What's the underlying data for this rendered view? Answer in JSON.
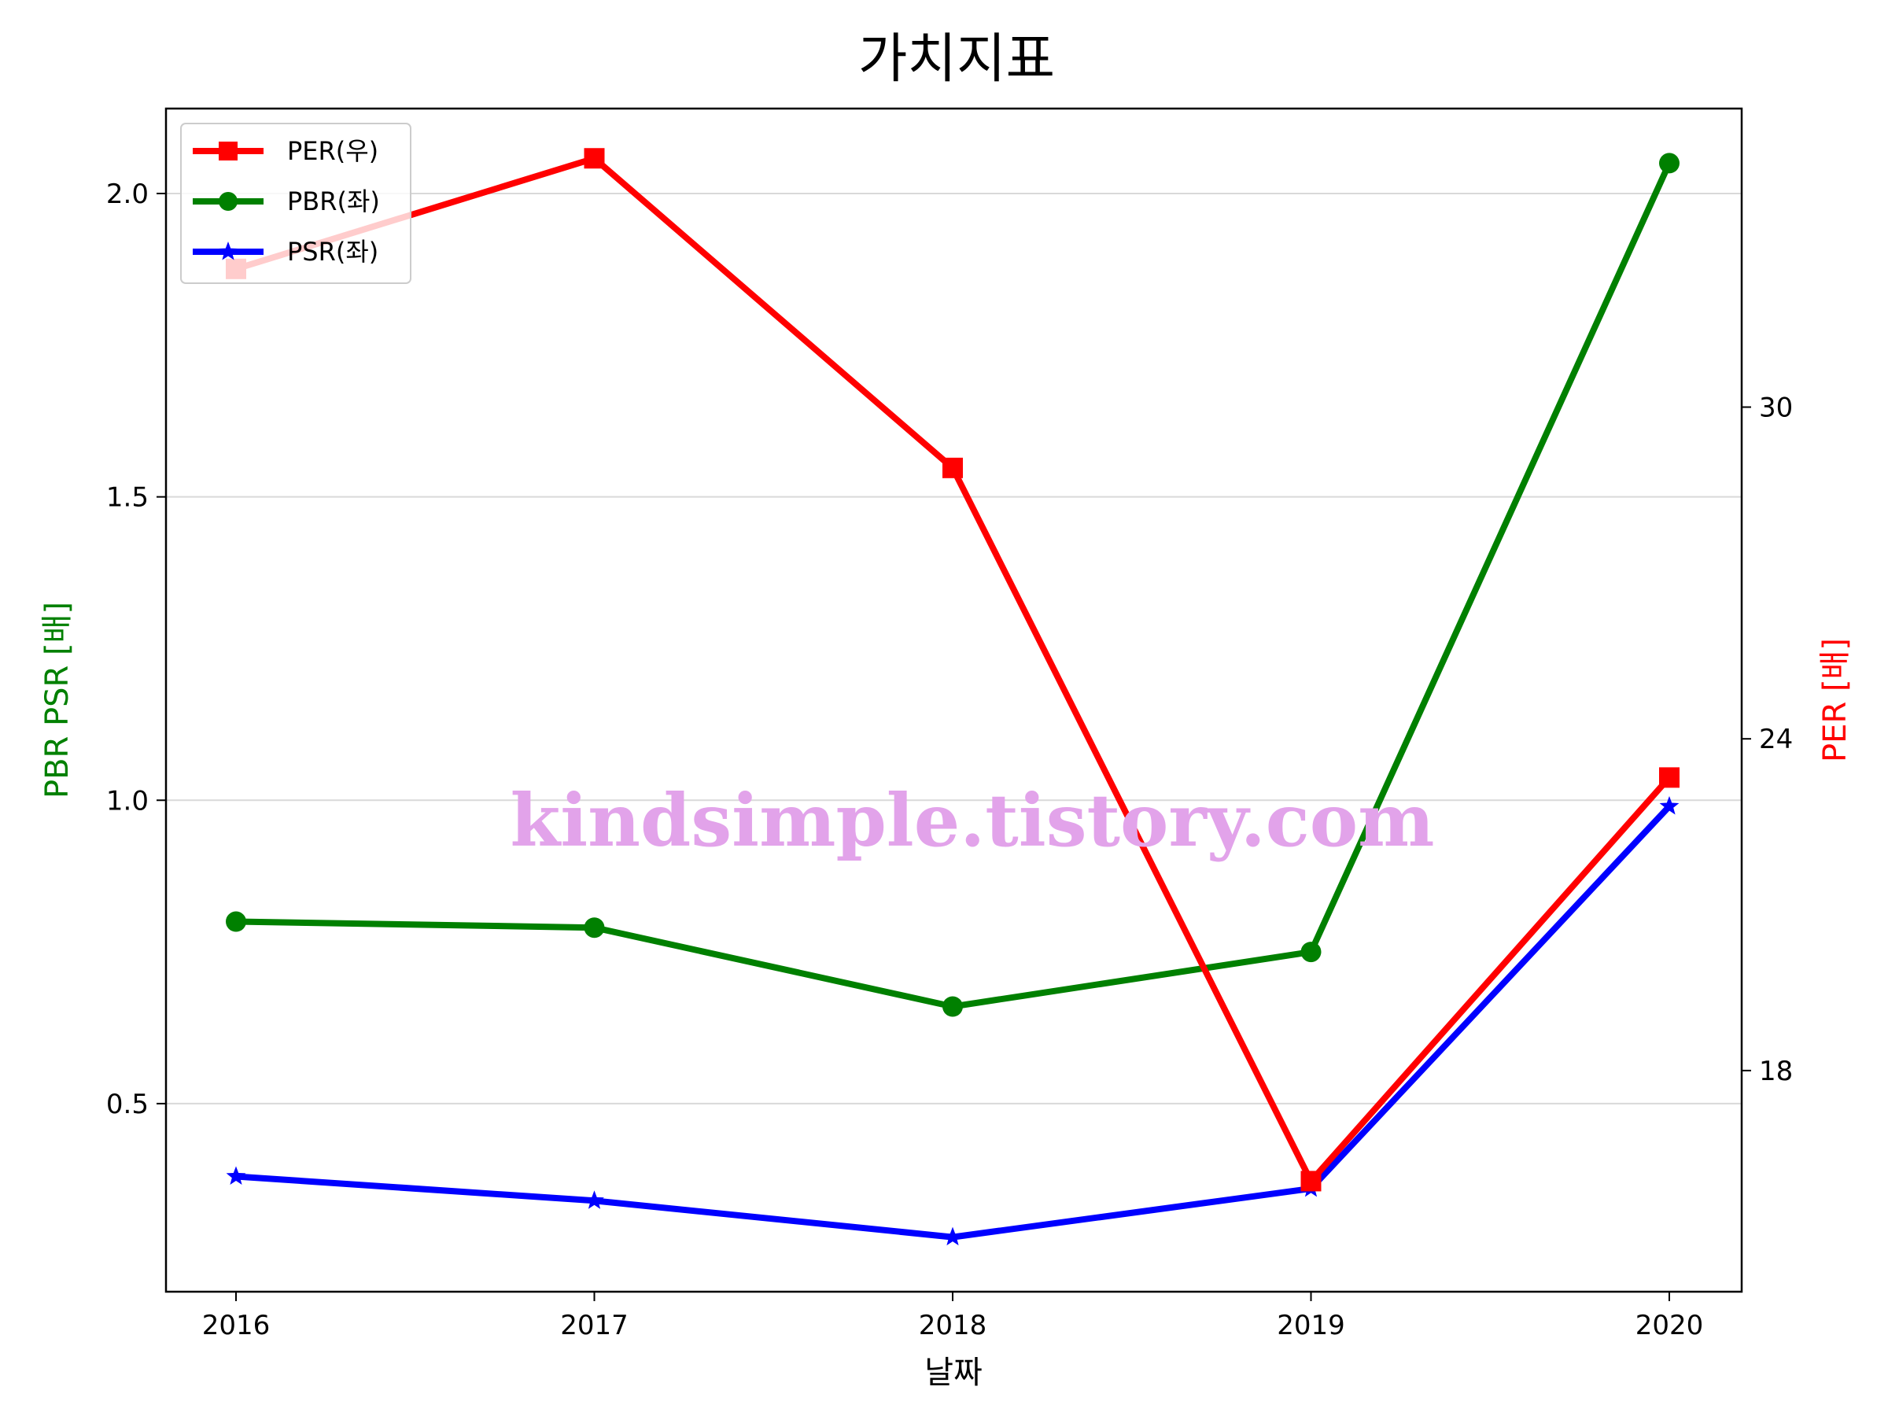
{
  "chart_data": {
    "type": "line",
    "title": "가치지표",
    "xlabel": "날짜",
    "ylabel_left": "PBR PSR [배]",
    "ylabel_right": "PER [배]",
    "categories": [
      "2016",
      "2017",
      "2018",
      "2019",
      "2020"
    ],
    "left_axis": {
      "ylim": [
        0.19,
        2.14
      ],
      "ticks": [
        "0.5",
        "1.0",
        "1.5",
        "2.0"
      ],
      "tick_values": [
        0.5,
        1.0,
        1.5,
        2.0
      ]
    },
    "right_axis": {
      "ylim": [
        14.0,
        35.4
      ],
      "ticks": [
        "18",
        "24",
        "30"
      ],
      "tick_values": [
        18,
        24,
        30
      ]
    },
    "grid": "horizontal",
    "legend_position": "top-left",
    "series": [
      {
        "name": "PER(우)",
        "axis": "right",
        "color": "#ff0000",
        "marker": "square",
        "values": [
          32.5,
          34.5,
          28.9,
          16.0,
          23.3
        ]
      },
      {
        "name": "PBR(좌)",
        "axis": "left",
        "color": "#008000",
        "marker": "circle",
        "values": [
          0.8,
          0.79,
          0.66,
          0.75,
          2.05
        ]
      },
      {
        "name": "PSR(좌)",
        "axis": "left",
        "color": "#0000ff",
        "marker": "star",
        "values": [
          0.38,
          0.34,
          0.28,
          0.36,
          0.99
        ]
      }
    ],
    "watermark": "kindsimple.tistory.com"
  }
}
